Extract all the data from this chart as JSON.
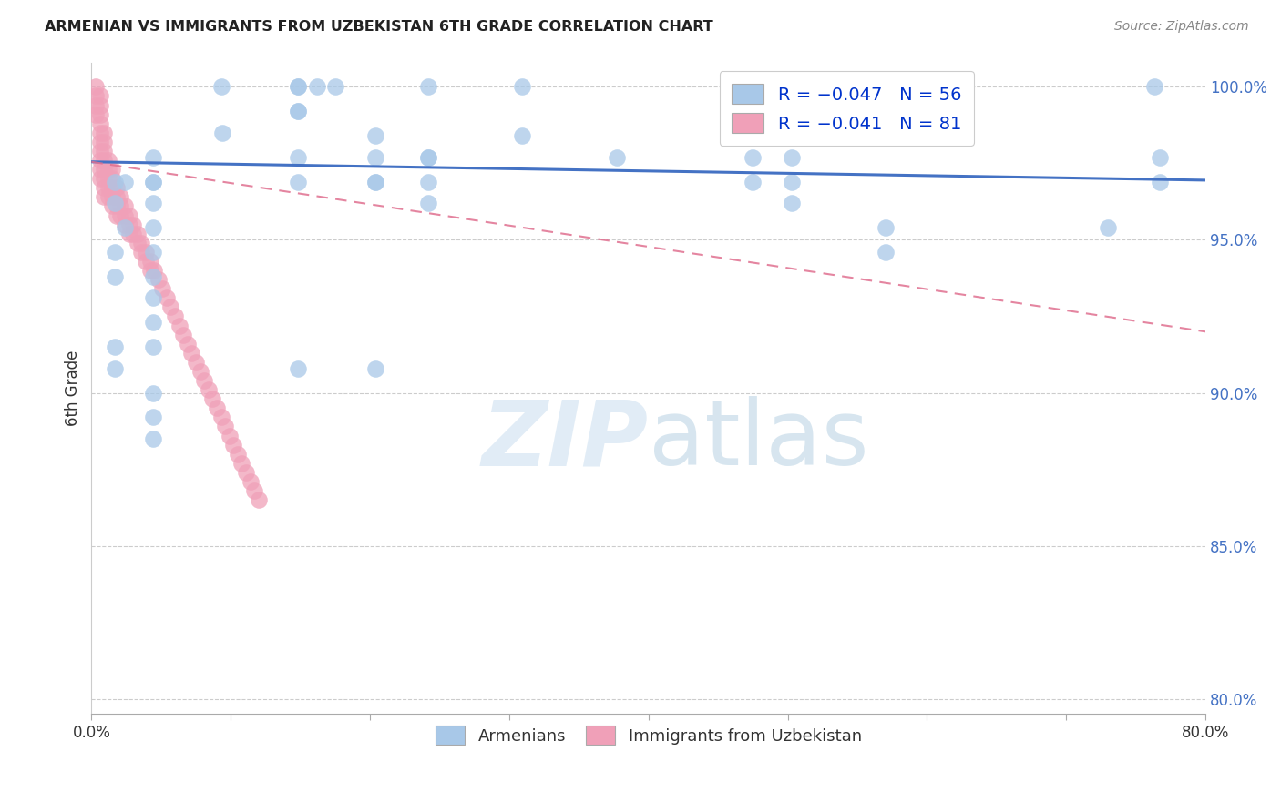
{
  "title": "ARMENIAN VS IMMIGRANTS FROM UZBEKISTAN 6TH GRADE CORRELATION CHART",
  "source": "Source: ZipAtlas.com",
  "ylabel": "6th Grade",
  "xlim": [
    0.0,
    0.8
  ],
  "ylim": [
    0.795,
    1.008
  ],
  "yticks": [
    0.8,
    0.85,
    0.9,
    0.95,
    1.0
  ],
  "ytick_labels": [
    "80.0%",
    "85.0%",
    "90.0%",
    "95.0%",
    "100.0%"
  ],
  "xtick_labels": [
    "0.0%",
    "",
    "",
    "",
    "",
    "",
    "",
    "",
    "80.0%"
  ],
  "blue_R": -0.047,
  "blue_N": 56,
  "pink_R": -0.041,
  "pink_N": 81,
  "blue_color": "#A8C8E8",
  "pink_color": "#F0A0B8",
  "trend_blue_color": "#4472C4",
  "trend_pink_color": "#E07090",
  "blue_trend_x": [
    0.0,
    0.8
  ],
  "blue_trend_y": [
    0.9755,
    0.9695
  ],
  "pink_trend_x": [
    0.0,
    0.8
  ],
  "pink_trend_y": [
    0.9755,
    0.92
  ],
  "blue_x": [
    0.093,
    0.148,
    0.148,
    0.162,
    0.175,
    0.148,
    0.242,
    0.309,
    0.094,
    0.148,
    0.148,
    0.204,
    0.242,
    0.309,
    0.377,
    0.148,
    0.204,
    0.044,
    0.044,
    0.044,
    0.017,
    0.024,
    0.044,
    0.017,
    0.024,
    0.044,
    0.044,
    0.017,
    0.017,
    0.044,
    0.044,
    0.044,
    0.017,
    0.044,
    0.017,
    0.475,
    0.475,
    0.503,
    0.503,
    0.503,
    0.73,
    0.767,
    0.767,
    0.204,
    0.204,
    0.242,
    0.242,
    0.242,
    0.57,
    0.57,
    0.148,
    0.044,
    0.204,
    0.044,
    0.044,
    0.763
  ],
  "blue_y": [
    1.0,
    1.0,
    1.0,
    1.0,
    1.0,
    0.992,
    1.0,
    1.0,
    0.985,
    0.992,
    0.977,
    0.984,
    0.977,
    0.984,
    0.977,
    0.969,
    0.969,
    0.977,
    0.969,
    0.969,
    0.969,
    0.969,
    0.962,
    0.962,
    0.954,
    0.954,
    0.946,
    0.946,
    0.938,
    0.938,
    0.931,
    0.923,
    0.915,
    0.915,
    0.908,
    0.977,
    0.969,
    0.977,
    0.969,
    0.962,
    0.954,
    0.977,
    0.969,
    0.977,
    0.969,
    0.977,
    0.969,
    0.962,
    0.954,
    0.946,
    0.908,
    0.9,
    0.908,
    0.892,
    0.885,
    1.0
  ],
  "pink_x": [
    0.003,
    0.003,
    0.003,
    0.003,
    0.006,
    0.006,
    0.006,
    0.006,
    0.006,
    0.006,
    0.006,
    0.006,
    0.006,
    0.006,
    0.009,
    0.009,
    0.009,
    0.009,
    0.009,
    0.009,
    0.009,
    0.009,
    0.012,
    0.012,
    0.012,
    0.012,
    0.012,
    0.015,
    0.015,
    0.015,
    0.015,
    0.015,
    0.018,
    0.018,
    0.018,
    0.018,
    0.021,
    0.021,
    0.021,
    0.024,
    0.024,
    0.024,
    0.027,
    0.027,
    0.027,
    0.03,
    0.03,
    0.033,
    0.033,
    0.036,
    0.036,
    0.039,
    0.039,
    0.042,
    0.042,
    0.045,
    0.048,
    0.051,
    0.054,
    0.057,
    0.06,
    0.063,
    0.066,
    0.069,
    0.072,
    0.075,
    0.078,
    0.081,
    0.084,
    0.087,
    0.09,
    0.093,
    0.096,
    0.099,
    0.102,
    0.105,
    0.108,
    0.111,
    0.114,
    0.117,
    0.12
  ],
  "pink_y": [
    1.0,
    0.997,
    0.994,
    0.991,
    0.997,
    0.994,
    0.991,
    0.988,
    0.985,
    0.982,
    0.979,
    0.976,
    0.973,
    0.97,
    0.985,
    0.982,
    0.979,
    0.976,
    0.973,
    0.97,
    0.967,
    0.964,
    0.976,
    0.973,
    0.97,
    0.967,
    0.964,
    0.973,
    0.97,
    0.967,
    0.964,
    0.961,
    0.967,
    0.964,
    0.961,
    0.958,
    0.964,
    0.961,
    0.958,
    0.961,
    0.958,
    0.955,
    0.958,
    0.955,
    0.952,
    0.955,
    0.952,
    0.952,
    0.949,
    0.949,
    0.946,
    0.946,
    0.943,
    0.943,
    0.94,
    0.94,
    0.937,
    0.934,
    0.931,
    0.928,
    0.925,
    0.922,
    0.919,
    0.916,
    0.913,
    0.91,
    0.907,
    0.904,
    0.901,
    0.898,
    0.895,
    0.892,
    0.889,
    0.886,
    0.883,
    0.88,
    0.877,
    0.874,
    0.871,
    0.868,
    0.865
  ]
}
